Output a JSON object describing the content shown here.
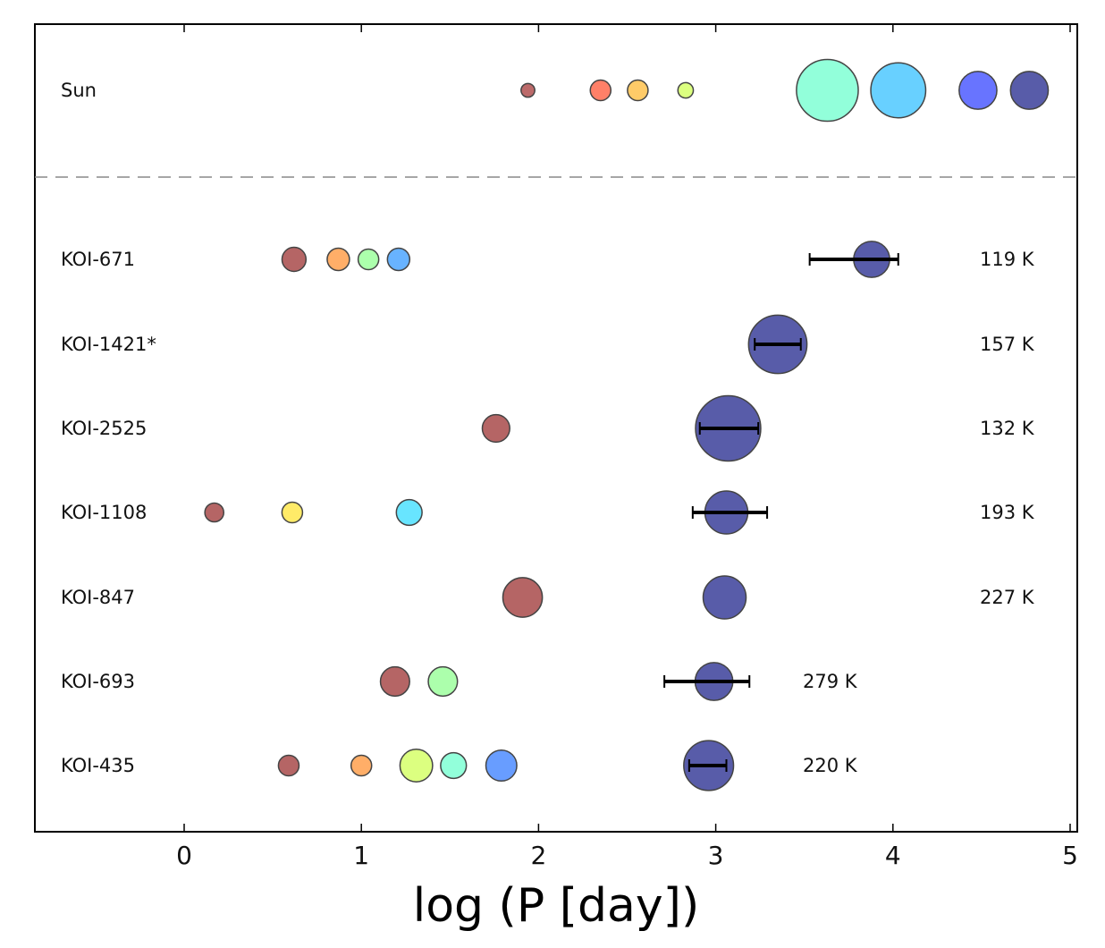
{
  "chart_data": {
    "type": "scatter",
    "title": "",
    "xlabel": "log (P [day])",
    "ylabel": "",
    "xlim": [
      -0.85,
      5.05
    ],
    "xticks": [
      "0",
      "1",
      "2",
      "3",
      "4",
      "5"
    ],
    "xtick_values": [
      0,
      1,
      2,
      3,
      4,
      5
    ],
    "grid": false,
    "rows": [
      {
        "label": "Sun",
        "temperature": "",
        "planets": [
          {
            "x": 1.94,
            "r": 0.8,
            "color": "#b05050"
          },
          {
            "x": 2.35,
            "r": 1.2,
            "color": "#ff6a4d"
          },
          {
            "x": 2.56,
            "r": 1.2,
            "color": "#ffc24d"
          },
          {
            "x": 2.83,
            "r": 0.9,
            "color": "#d6ff6a"
          },
          {
            "x": 3.63,
            "r": 3.6,
            "color": "#7fffd4"
          },
          {
            "x": 4.03,
            "r": 3.2,
            "color": "#4dc8ff"
          },
          {
            "x": 4.48,
            "r": 2.2,
            "color": "#4d5cff"
          },
          {
            "x": 4.77,
            "r": 2.2,
            "color": "#3b3f9a"
          }
        ]
      },
      {
        "label": "KOI-671",
        "temperature": "119 K",
        "planets": [
          {
            "x": 0.62,
            "r": 1.4,
            "color": "#a84a4a"
          },
          {
            "x": 0.87,
            "r": 1.3,
            "color": "#ffa04d"
          },
          {
            "x": 1.04,
            "r": 1.2,
            "color": "#9dff9d"
          },
          {
            "x": 1.21,
            "r": 1.3,
            "color": "#4da6ff"
          },
          {
            "x": 3.88,
            "r": 2.1,
            "color": "#3b3f9a",
            "xerr": [
              0.35,
              0.15
            ]
          }
        ]
      },
      {
        "label": "KOI-1421*",
        "temperature": "157 K",
        "planets": [
          {
            "x": 3.35,
            "r": 3.4,
            "color": "#3b3f9a",
            "xerr": [
              0.13,
              0.13
            ]
          }
        ]
      },
      {
        "label": "KOI-2525",
        "temperature": "132 K",
        "planets": [
          {
            "x": 1.76,
            "r": 1.6,
            "color": "#a84a4a"
          },
          {
            "x": 3.07,
            "r": 3.8,
            "color": "#3b3f9a",
            "xerr": [
              0.16,
              0.17
            ]
          }
        ]
      },
      {
        "label": "KOI-1108",
        "temperature": "193 K",
        "planets": [
          {
            "x": 0.17,
            "r": 1.1,
            "color": "#a84a4a"
          },
          {
            "x": 0.61,
            "r": 1.2,
            "color": "#ffe84d"
          },
          {
            "x": 1.27,
            "r": 1.5,
            "color": "#4de0ff"
          },
          {
            "x": 3.06,
            "r": 2.5,
            "color": "#3b3f9a",
            "xerr": [
              0.19,
              0.23
            ]
          }
        ]
      },
      {
        "label": "KOI-847",
        "temperature": "227 K",
        "planets": [
          {
            "x": 1.91,
            "r": 2.3,
            "color": "#a84a4a"
          },
          {
            "x": 3.05,
            "r": 2.5,
            "color": "#3b3f9a"
          }
        ]
      },
      {
        "label": "KOI-693",
        "temperature": "279 K",
        "planets": [
          {
            "x": 1.19,
            "r": 1.7,
            "color": "#a84a4a"
          },
          {
            "x": 1.46,
            "r": 1.7,
            "color": "#9dff9d"
          },
          {
            "x": 2.99,
            "r": 2.2,
            "color": "#3b3f9a",
            "xerr": [
              0.28,
              0.2
            ]
          }
        ]
      },
      {
        "label": "KOI-435",
        "temperature": "220 K",
        "planets": [
          {
            "x": 0.59,
            "r": 1.2,
            "color": "#a84a4a"
          },
          {
            "x": 1.0,
            "r": 1.2,
            "color": "#ffa04d"
          },
          {
            "x": 1.31,
            "r": 1.9,
            "color": "#d6ff6a"
          },
          {
            "x": 1.52,
            "r": 1.5,
            "color": "#7fffd4"
          },
          {
            "x": 1.79,
            "r": 1.8,
            "color": "#4d8cff"
          },
          {
            "x": 2.96,
            "r": 2.9,
            "color": "#3b3f9a",
            "xerr": [
              0.11,
              0.1
            ]
          }
        ]
      }
    ]
  }
}
